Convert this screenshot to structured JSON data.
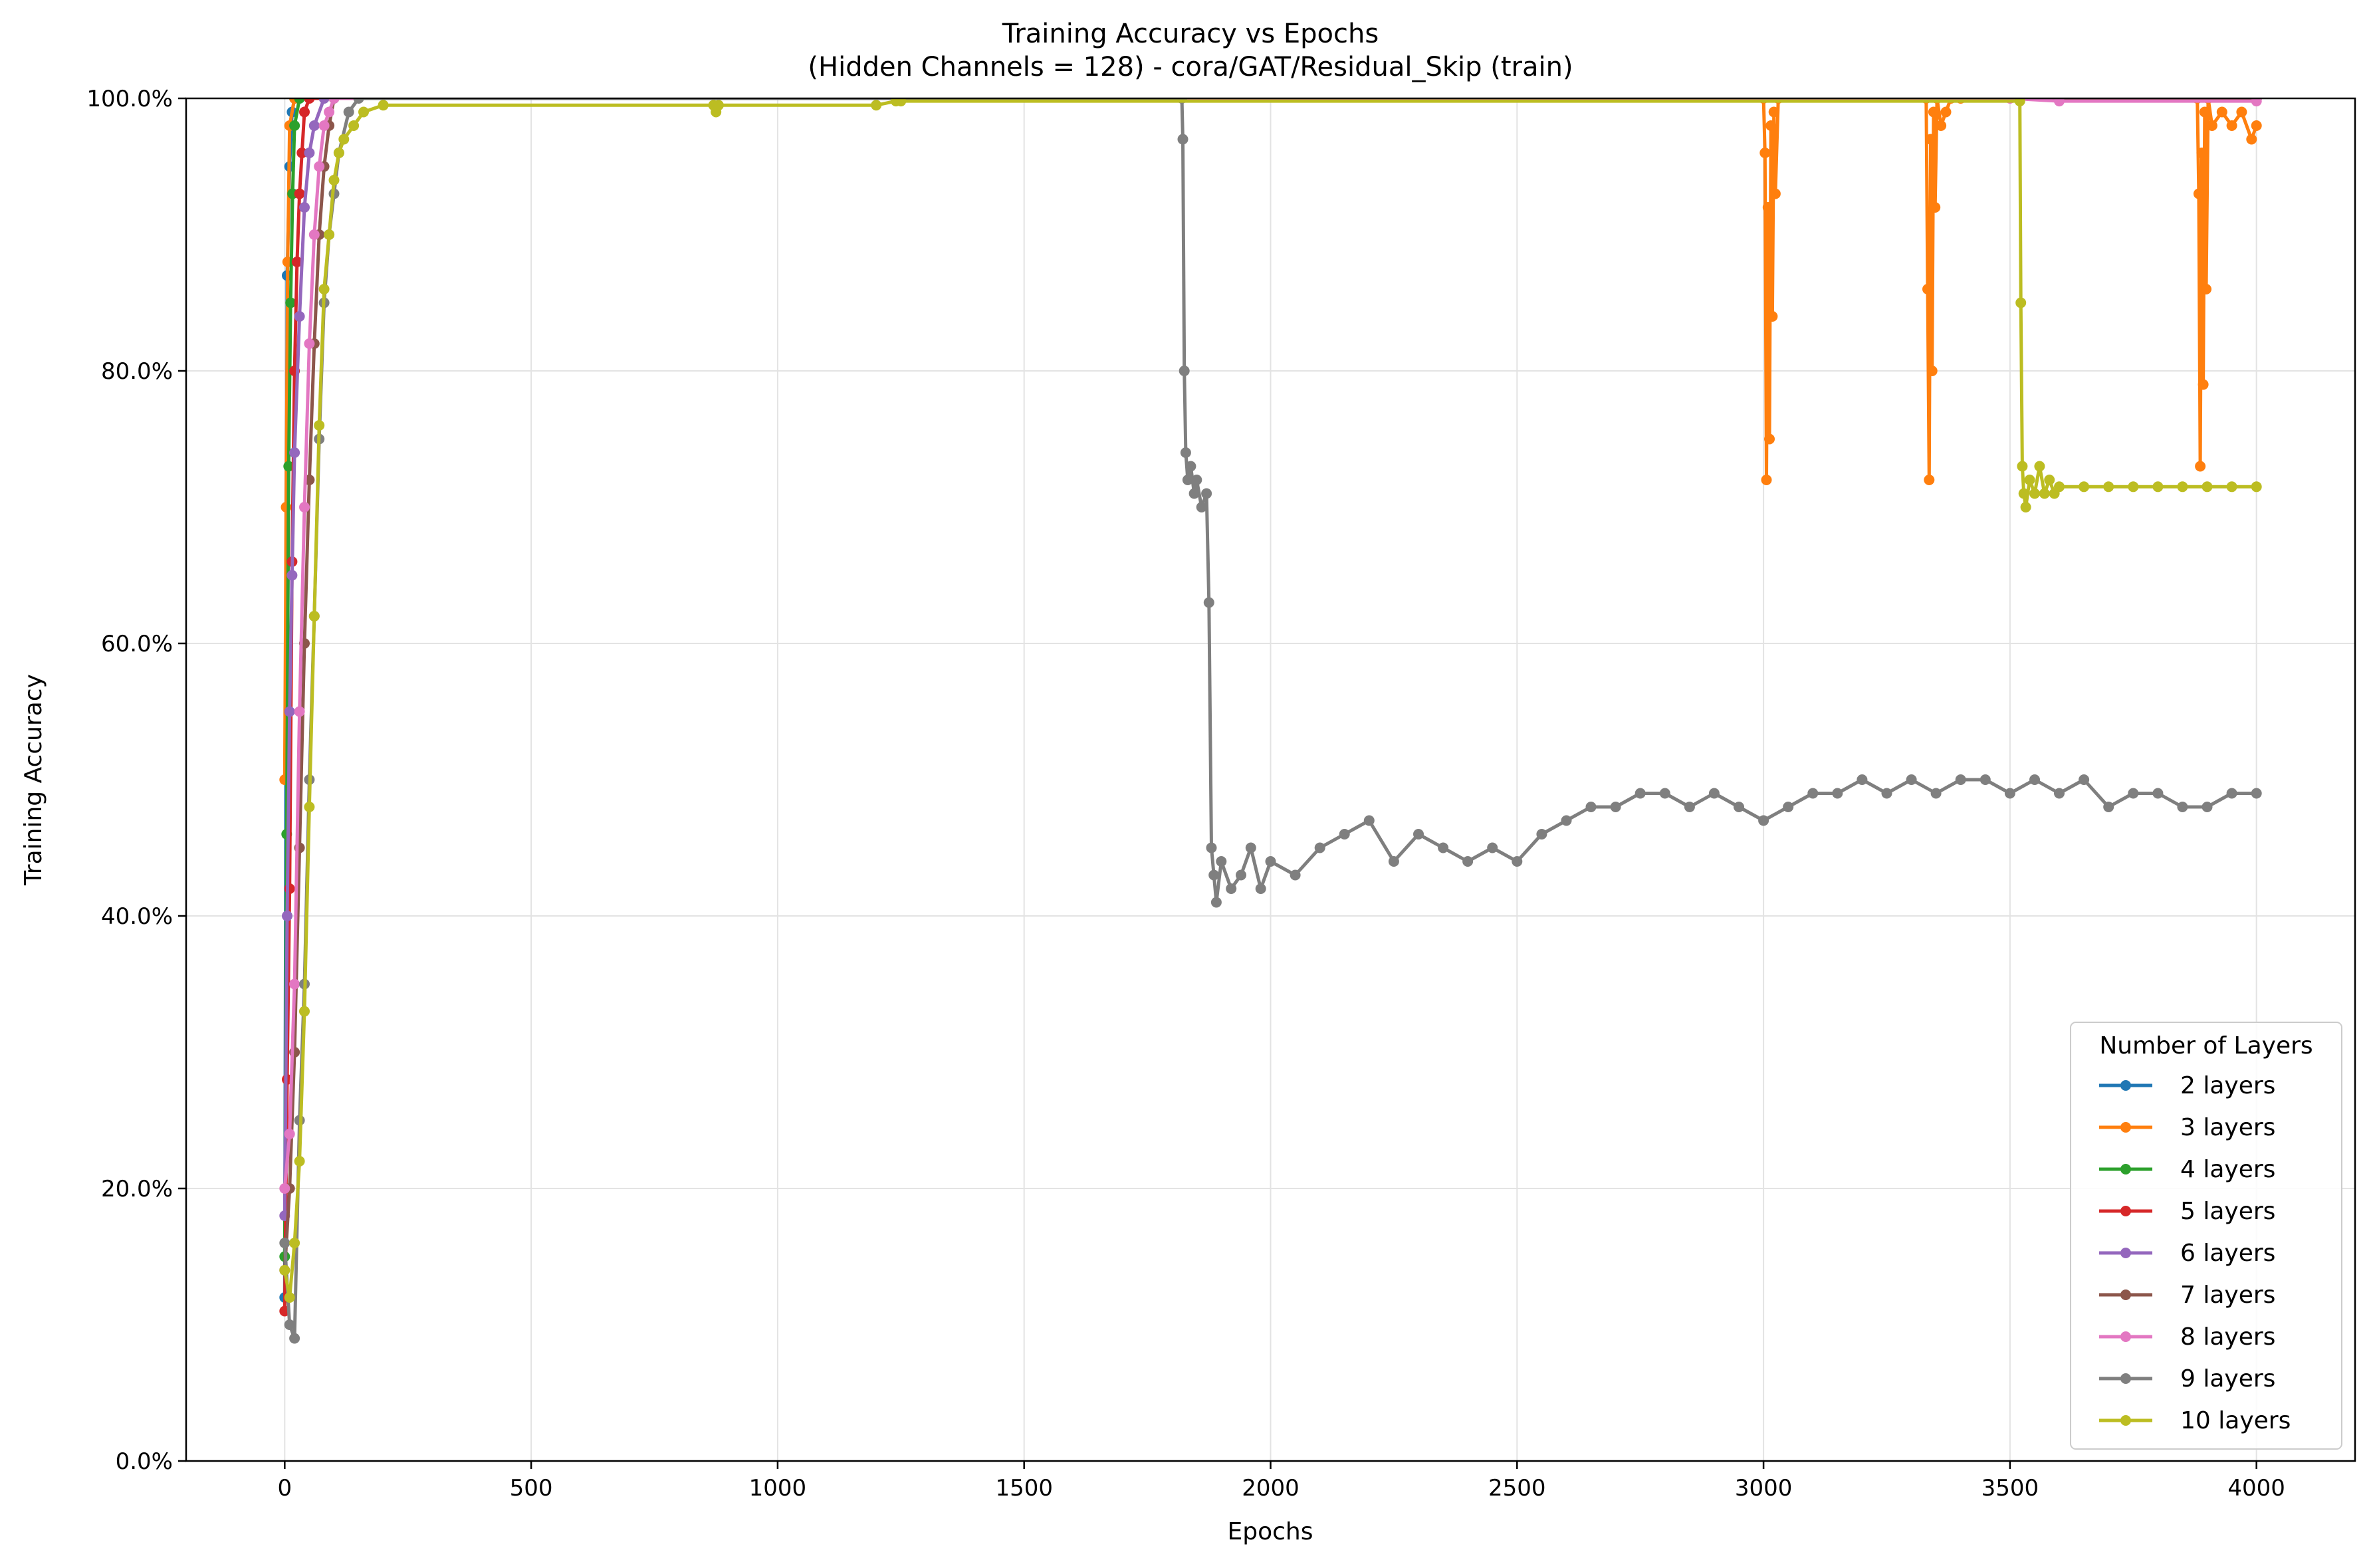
{
  "chart_data": {
    "type": "line",
    "title": "Training Accuracy vs Epochs",
    "subtitle": "(Hidden Channels = 128) - cora/GAT/Residual_Skip (train)",
    "xlabel": "Epochs",
    "ylabel": "Training Accuracy",
    "xlim": [
      -200,
      4200
    ],
    "ylim": [
      0,
      100
    ],
    "x_ticks": [
      0,
      500,
      1000,
      1500,
      2000,
      2500,
      3000,
      3500,
      4000
    ],
    "x_tick_labels": [
      "0",
      "500",
      "1000",
      "1500",
      "2000",
      "2500",
      "3000",
      "3500",
      "4000"
    ],
    "y_ticks": [
      0,
      20,
      40,
      60,
      80,
      100
    ],
    "y_tick_labels": [
      "0.0%",
      "20.0%",
      "40.0%",
      "60.0%",
      "80.0%",
      "100.0%"
    ],
    "grid": true,
    "legend_title": "Number of Layers",
    "legend_position": "lower-right",
    "series": [
      {
        "name": "2 layers",
        "color": "#1f77b4",
        "x": [
          0,
          5,
          10,
          15,
          20,
          30,
          4000
        ],
        "y": [
          12,
          87,
          95,
          99,
          100,
          100,
          100
        ]
      },
      {
        "name": "3 layers",
        "color": "#ff7f0e",
        "x": [
          0,
          3,
          6,
          10,
          20,
          3000,
          3003,
          3006,
          3009,
          3012,
          3015,
          3018,
          3021,
          3024,
          3030,
          3330,
          3333,
          3336,
          3339,
          3342,
          3345,
          3348,
          3352,
          3360,
          3370,
          3380,
          3400,
          3880,
          3883,
          3886,
          3889,
          3892,
          3895,
          3898,
          3902,
          3910,
          3930,
          3950,
          3970,
          3990,
          4000
        ],
        "y": [
          50,
          70,
          88,
          98,
          100,
          100,
          96,
          72,
          92,
          75,
          98,
          84,
          99,
          93,
          100,
          100,
          86,
          72,
          97,
          80,
          99,
          92,
          100,
          98,
          99,
          100,
          100,
          100,
          93,
          73,
          96,
          79,
          99,
          86,
          100,
          98,
          99,
          98,
          99,
          97,
          98
        ]
      },
      {
        "name": "4 layers",
        "color": "#2ca02c",
        "x": [
          0,
          4,
          8,
          12,
          16,
          20,
          30,
          4000
        ],
        "y": [
          15,
          46,
          73,
          85,
          93,
          98,
          100,
          100
        ]
      },
      {
        "name": "5 layers",
        "color": "#d62728",
        "x": [
          0,
          5,
          10,
          15,
          20,
          25,
          30,
          35,
          40,
          50,
          4000
        ],
        "y": [
          11,
          28,
          42,
          66,
          80,
          88,
          93,
          96,
          99,
          100,
          100
        ]
      },
      {
        "name": "6 layers",
        "color": "#9467bd",
        "x": [
          0,
          5,
          10,
          15,
          20,
          30,
          40,
          50,
          60,
          80,
          4000
        ],
        "y": [
          18,
          40,
          55,
          65,
          74,
          84,
          92,
          96,
          98,
          100,
          100
        ]
      },
      {
        "name": "7 layers",
        "color": "#8c564b",
        "x": [
          0,
          10,
          20,
          30,
          40,
          50,
          60,
          70,
          80,
          90,
          100,
          4000
        ],
        "y": [
          14,
          20,
          30,
          45,
          60,
          72,
          82,
          90,
          95,
          98,
          100,
          100
        ]
      },
      {
        "name": "8 layers",
        "color": "#e377c2",
        "x": [
          0,
          10,
          20,
          30,
          40,
          50,
          60,
          70,
          80,
          90,
          100,
          3500,
          3600,
          4000
        ],
        "y": [
          20,
          24,
          35,
          55,
          70,
          82,
          90,
          95,
          98,
          99,
          100,
          100,
          99.8,
          99.8
        ]
      },
      {
        "name": "9 layers",
        "color": "#7f7f7f",
        "x": [
          0,
          10,
          20,
          30,
          40,
          50,
          60,
          70,
          80,
          90,
          100,
          110,
          130,
          150,
          1820,
          1822,
          1825,
          1828,
          1832,
          1838,
          1845,
          1850,
          1860,
          1870,
          1875,
          1880,
          1885,
          1890,
          1900,
          1920,
          1940,
          1960,
          1980,
          2000,
          2050,
          2100,
          2150,
          2200,
          2250,
          2300,
          2350,
          2400,
          2450,
          2500,
          2550,
          2600,
          2650,
          2700,
          2750,
          2800,
          2850,
          2900,
          2950,
          3000,
          3050,
          3100,
          3150,
          3200,
          3250,
          3300,
          3350,
          3400,
          3450,
          3500,
          3550,
          3600,
          3650,
          3700,
          3750,
          3800,
          3850,
          3900,
          3950,
          4000
        ],
        "y": [
          16,
          10,
          9,
          25,
          35,
          50,
          62,
          75,
          85,
          90,
          93,
          96,
          99,
          100,
          100,
          97,
          80,
          74,
          72,
          73,
          71,
          72,
          70,
          71,
          63,
          45,
          43,
          41,
          44,
          42,
          43,
          45,
          42,
          44,
          43,
          45,
          46,
          47,
          44,
          46,
          45,
          44,
          45,
          44,
          46,
          47,
          48,
          48,
          49,
          49,
          48,
          49,
          48,
          47,
          48,
          49,
          49,
          50,
          49,
          50,
          49,
          50,
          50,
          49,
          50,
          49,
          50,
          48,
          49,
          49,
          48,
          48,
          49,
          49
        ]
      },
      {
        "name": "10 layers",
        "color": "#bcbd22",
        "x": [
          0,
          10,
          20,
          30,
          40,
          50,
          60,
          70,
          80,
          90,
          100,
          110,
          120,
          140,
          160,
          200,
          870,
          875,
          880,
          1200,
          1240,
          1250,
          3520,
          3522,
          3525,
          3528,
          3532,
          3540,
          3550,
          3560,
          3570,
          3580,
          3590,
          3600,
          3650,
          3700,
          3750,
          3800,
          3850,
          3900,
          3950,
          4000
        ],
        "y": [
          14,
          12,
          16,
          22,
          33,
          48,
          62,
          76,
          86,
          90,
          94,
          96,
          97,
          98,
          99,
          99.5,
          99.5,
          99,
          99.5,
          99.5,
          99.8,
          99.8,
          99.8,
          85,
          73,
          71,
          70,
          72,
          71,
          73,
          71,
          72,
          71,
          71.5,
          71.5,
          71.5,
          71.5,
          71.5,
          71.5,
          71.5,
          71.5,
          71.5
        ]
      }
    ]
  }
}
